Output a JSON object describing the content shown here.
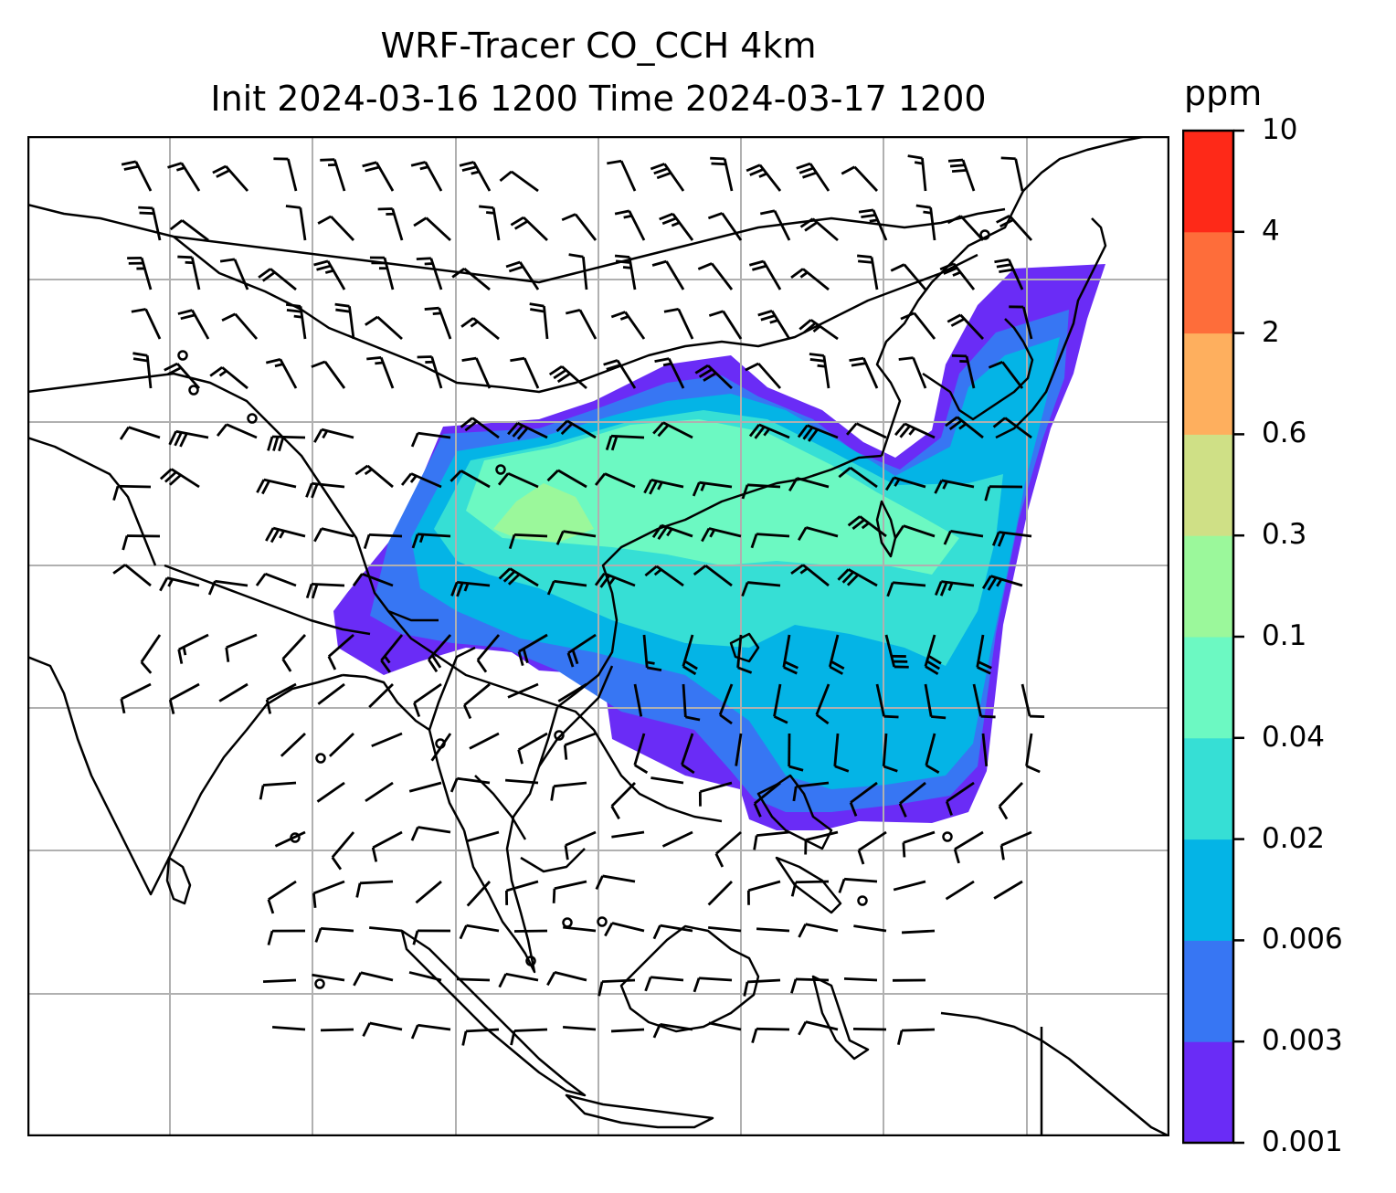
{
  "title": {
    "line1": "WRF-Tracer CO_CCH 4km",
    "line2": "Init 2024-03-16 1200 Time 2024-03-17 1200"
  },
  "colorbar": {
    "unit": "ppm",
    "levels": [
      "0.001",
      "0.003",
      "0.006",
      "0.02",
      "0.04",
      "0.1",
      "0.3",
      "0.6",
      "2",
      "4",
      "10"
    ],
    "colors": [
      "#6a2cf6",
      "#3776f3",
      "#04b4e6",
      "#36dfd5",
      "#6cf9c2",
      "#9bf89b",
      "#cfe086",
      "#feaf5e",
      "#fe6d3a",
      "#fe2918"
    ]
  },
  "map": {
    "gridlines": true,
    "plume_colors": {
      "outer": "#6a2cf6",
      "band2": "#3776f3",
      "band3": "#04b4e6",
      "band4": "#36dfd5",
      "core": "#6cf9c2",
      "peak": "#9bf89b"
    },
    "calm_markers": "circle",
    "wind_symbol": "wind-barb"
  }
}
